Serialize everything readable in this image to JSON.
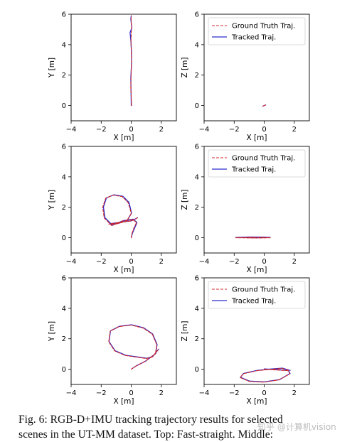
{
  "figure": {
    "caption_line1": "Fig. 6: RGB-D+IMU tracking trajectory results for selected",
    "caption_line2": "scenes in the UT-MM dataset. Top: Fast-straight. Middle:",
    "watermark": "知乎 @计算机vision"
  },
  "colors": {
    "ground_truth": "#d62728",
    "tracked": "#2a2acf",
    "axis": "#000000"
  },
  "chart_data": [
    {
      "type": "line",
      "row": 0,
      "plane": "XY",
      "xlabel": "X [m]",
      "ylabel": "Y [m]",
      "xlim": [
        -4,
        3
      ],
      "ylim": [
        -1,
        6
      ],
      "xticks": [
        -4,
        -2,
        0,
        2
      ],
      "yticks": [
        0,
        2,
        4,
        6
      ],
      "grid": false,
      "legend": null,
      "series": [
        {
          "role": "ground_truth",
          "x": [
            0.02,
            0.0,
            -0.03,
            -0.02,
            0.0,
            0.02,
            0.0,
            -0.02,
            0.0,
            0.03,
            0.0,
            -0.01,
            0.0
          ],
          "y": [
            0.0,
            0.6,
            1.2,
            1.8,
            2.4,
            3.0,
            3.6,
            4.2,
            4.8,
            5.1,
            5.4,
            5.7,
            5.9
          ]
        },
        {
          "role": "tracked",
          "x": [
            0.0,
            -0.01,
            -0.02,
            -0.03,
            0.0,
            0.02,
            0.01,
            -0.02,
            -0.08,
            0.04,
            0.0,
            -0.03,
            0.0
          ],
          "y": [
            0.0,
            0.6,
            1.2,
            1.8,
            2.4,
            3.0,
            3.6,
            4.2,
            4.8,
            5.1,
            5.4,
            5.7,
            5.9
          ]
        }
      ]
    },
    {
      "type": "line",
      "row": 0,
      "plane": "XZ",
      "xlabel": "X [m]",
      "ylabel": "Z [m]",
      "xlim": [
        -4,
        3
      ],
      "ylim": [
        -1,
        6
      ],
      "xticks": [
        -4,
        -2,
        0,
        2
      ],
      "yticks": [
        0,
        2,
        4,
        6
      ],
      "grid": false,
      "legend": "top-right",
      "series": [
        {
          "name": "Ground Truth Traj.",
          "role": "ground_truth",
          "x": [
            -0.08,
            0.0,
            0.08
          ],
          "y": [
            -0.03,
            0.0,
            0.03
          ]
        },
        {
          "name": "Tracked Traj.",
          "role": "tracked",
          "x": [
            -0.1,
            0.0,
            0.1
          ],
          "y": [
            -0.04,
            0.0,
            0.04
          ]
        }
      ]
    },
    {
      "type": "line",
      "row": 1,
      "plane": "XY",
      "xlabel": "X [m]",
      "ylabel": "Y [m]",
      "xlim": [
        -4,
        3
      ],
      "ylim": [
        -1,
        6
      ],
      "xticks": [
        -4,
        -2,
        0,
        2
      ],
      "yticks": [
        0,
        2,
        4,
        6
      ],
      "grid": false,
      "legend": null,
      "series": [
        {
          "role": "ground_truth",
          "x": [
            0.0,
            0.05,
            0.2,
            0.35,
            0.1,
            -0.6,
            -1.3,
            -1.8,
            -1.9,
            -1.7,
            -1.2,
            -0.6,
            -0.2,
            0.0,
            -0.3,
            -1.0,
            -1.5,
            -0.8,
            0.0,
            0.4
          ],
          "y": [
            0.0,
            0.3,
            0.7,
            1.0,
            1.2,
            1.1,
            0.8,
            1.3,
            2.0,
            2.6,
            2.8,
            2.7,
            2.3,
            1.6,
            1.1,
            0.9,
            0.9,
            1.0,
            1.1,
            1.3
          ]
        },
        {
          "role": "tracked",
          "x": [
            0.0,
            0.08,
            0.25,
            0.38,
            0.12,
            -0.55,
            -1.25,
            -1.75,
            -1.85,
            -1.65,
            -1.15,
            -0.55,
            -0.15,
            0.02,
            -0.28,
            -0.95,
            -1.45,
            -0.75,
            0.05,
            0.42
          ],
          "y": [
            0.0,
            0.3,
            0.7,
            1.0,
            1.22,
            1.12,
            0.82,
            1.32,
            2.02,
            2.62,
            2.82,
            2.72,
            2.32,
            1.62,
            1.12,
            0.92,
            0.92,
            1.02,
            1.12,
            1.32
          ]
        }
      ]
    },
    {
      "type": "line",
      "row": 1,
      "plane": "XZ",
      "xlabel": "X [m]",
      "ylabel": "Z [m]",
      "xlim": [
        -4,
        3
      ],
      "ylim": [
        -1,
        6
      ],
      "xticks": [
        -4,
        -2,
        0,
        2
      ],
      "yticks": [
        0,
        2,
        4,
        6
      ],
      "grid": false,
      "legend": "top-right",
      "series": [
        {
          "name": "Ground Truth Traj.",
          "role": "ground_truth",
          "x": [
            -1.9,
            -1.0,
            0.0,
            0.4,
            -0.5,
            -1.8
          ],
          "y": [
            0.0,
            0.03,
            0.02,
            0.0,
            -0.02,
            0.0
          ]
        },
        {
          "name": "Tracked Traj.",
          "role": "tracked",
          "x": [
            -1.9,
            -1.0,
            0.0,
            0.4,
            -0.5,
            -1.8
          ],
          "y": [
            0.02,
            0.05,
            0.04,
            0.02,
            0.0,
            0.02
          ]
        }
      ]
    },
    {
      "type": "line",
      "row": 2,
      "plane": "XY",
      "xlabel": "X [m]",
      "ylabel": "Y [m]",
      "xlim": [
        -4,
        3
      ],
      "ylim": [
        -1,
        6
      ],
      "xticks": [
        -4,
        -2,
        0,
        2
      ],
      "yticks": [
        0,
        2,
        4,
        6
      ],
      "grid": false,
      "legend": null,
      "series": [
        {
          "role": "ground_truth",
          "x": [
            0.0,
            0.3,
            0.9,
            1.6,
            1.7,
            1.4,
            0.8,
            0.0,
            -0.8,
            -1.4,
            -1.5,
            -1.1,
            -0.4,
            0.3,
            1.0,
            1.4,
            1.8
          ],
          "y": [
            0.0,
            0.2,
            0.5,
            1.0,
            1.6,
            2.3,
            2.7,
            2.9,
            2.8,
            2.5,
            1.8,
            1.2,
            0.9,
            0.8,
            0.7,
            0.8,
            1.3
          ]
        },
        {
          "role": "tracked",
          "x": [
            0.03,
            0.33,
            0.93,
            1.62,
            1.72,
            1.42,
            0.82,
            0.02,
            -0.78,
            -1.38,
            -1.48,
            -1.08,
            -0.38,
            0.32,
            1.02,
            1.42,
            1.82
          ],
          "y": [
            0.02,
            0.22,
            0.52,
            1.02,
            1.62,
            2.32,
            2.72,
            2.92,
            2.82,
            2.52,
            1.82,
            1.22,
            0.92,
            0.82,
            0.72,
            0.82,
            1.32
          ]
        }
      ]
    },
    {
      "type": "line",
      "row": 2,
      "plane": "XZ",
      "xlabel": "X [m]",
      "ylabel": "Z [m]",
      "xlim": [
        -4,
        3
      ],
      "ylim": [
        -1,
        6
      ],
      "xticks": [
        -4,
        -2,
        0,
        2
      ],
      "yticks": [
        0,
        2,
        4,
        6
      ],
      "grid": false,
      "legend": "top-right",
      "series": [
        {
          "name": "Ground Truth Traj.",
          "role": "ground_truth",
          "x": [
            0.0,
            0.8,
            1.6,
            1.7,
            1.0,
            0.0,
            -1.0,
            -1.6,
            -1.4,
            -0.5,
            0.5,
            1.2,
            1.7
          ],
          "y": [
            0.0,
            -0.05,
            -0.1,
            -0.3,
            -0.7,
            -0.85,
            -0.8,
            -0.55,
            -0.3,
            -0.1,
            0.0,
            0.05,
            -0.1
          ]
        },
        {
          "name": "Tracked Traj.",
          "role": "tracked",
          "x": [
            0.0,
            0.8,
            1.6,
            1.72,
            1.02,
            0.02,
            -0.98,
            -1.58,
            -1.38,
            -0.48,
            0.52,
            1.22,
            1.72
          ],
          "y": [
            0.02,
            -0.03,
            -0.08,
            -0.28,
            -0.68,
            -0.83,
            -0.78,
            -0.53,
            -0.28,
            -0.08,
            0.02,
            0.07,
            -0.08
          ]
        }
      ]
    }
  ]
}
